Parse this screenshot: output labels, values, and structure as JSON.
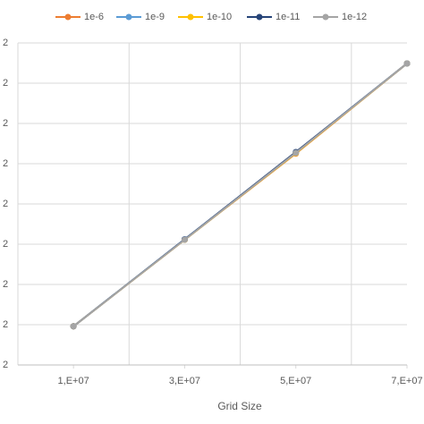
{
  "chart_data": {
    "type": "line",
    "x_label": "Grid Size",
    "x": [
      10000000,
      30000000,
      50000000,
      70000000
    ],
    "series": [
      {
        "name": "1e-6",
        "color": "#ed7d31",
        "values": [
          1.696,
          1.911,
          2.125,
          2.349
        ]
      },
      {
        "name": "1e-9",
        "color": "#5b9bd5",
        "values": [
          1.696,
          1.912,
          2.128,
          2.349
        ]
      },
      {
        "name": "1e-10",
        "color": "#ffc000",
        "values": [
          1.696,
          1.911,
          2.126,
          2.349
        ]
      },
      {
        "name": "1e-11",
        "color": "#264478",
        "values": [
          1.696,
          1.912,
          2.129,
          2.349
        ]
      },
      {
        "name": "1e-12",
        "color": "#a5a5a5",
        "values": [
          1.696,
          1.911,
          2.127,
          2.349
        ]
      }
    ],
    "xlim": [
      0,
      70000000
    ],
    "xticks": [
      {
        "value": 10000000,
        "label": "1,E+07"
      },
      {
        "value": 30000000,
        "label": "3,E+07"
      },
      {
        "value": 50000000,
        "label": "5,E+07"
      },
      {
        "value": 70000000,
        "label": "7,E+07"
      }
    ],
    "xgrid": [
      0,
      20000000,
      40000000,
      60000000
    ],
    "ylim": [
      1.6,
      2.4
    ],
    "yticks": [
      {
        "value": 1.6,
        "label": "2"
      },
      {
        "value": 1.7,
        "label": "2"
      },
      {
        "value": 1.8,
        "label": "2"
      },
      {
        "value": 1.9,
        "label": "2"
      },
      {
        "value": 2.0,
        "label": "2"
      },
      {
        "value": 2.1,
        "label": "2"
      },
      {
        "value": 2.2,
        "label": "2"
      },
      {
        "value": 2.3,
        "label": "2"
      },
      {
        "value": 2.4,
        "label": "2"
      }
    ],
    "grid": true,
    "legend": "top"
  }
}
